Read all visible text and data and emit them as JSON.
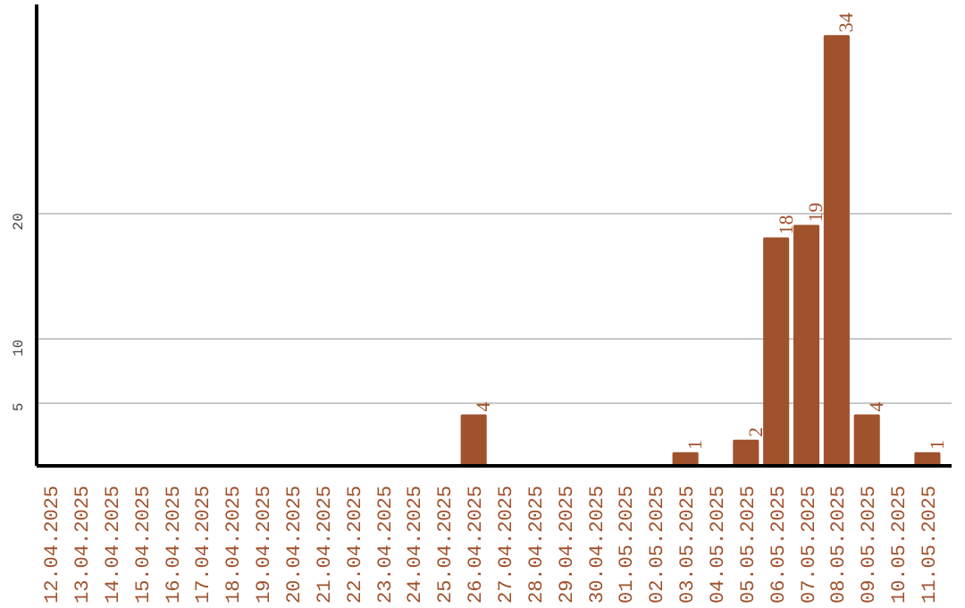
{
  "chart_data": {
    "type": "bar",
    "categories": [
      "12.04.2025",
      "13.04.2025",
      "14.04.2025",
      "15.04.2025",
      "16.04.2025",
      "17.04.2025",
      "18.04.2025",
      "19.04.2025",
      "20.04.2025",
      "21.04.2025",
      "22.04.2025",
      "23.04.2025",
      "24.04.2025",
      "25.04.2025",
      "26.04.2025",
      "27.04.2025",
      "28.04.2025",
      "29.04.2025",
      "30.04.2025",
      "01.05.2025",
      "02.05.2025",
      "03.05.2025",
      "04.05.2025",
      "05.05.2025",
      "06.05.2025",
      "07.05.2025",
      "08.05.2025",
      "09.05.2025",
      "10.05.2025",
      "11.05.2025"
    ],
    "values": [
      0,
      0,
      0,
      0,
      0,
      0,
      0,
      0,
      0,
      0,
      0,
      0,
      0,
      0,
      4,
      0,
      0,
      0,
      0,
      0,
      0,
      1,
      0,
      2,
      18,
      19,
      34,
      4,
      0,
      1
    ],
    "value_labels": [
      null,
      null,
      null,
      null,
      null,
      null,
      null,
      null,
      null,
      null,
      null,
      null,
      null,
      null,
      "4",
      null,
      null,
      null,
      null,
      null,
      null,
      "1",
      null,
      "2",
      "18",
      "19",
      "34",
      "4",
      null,
      "1"
    ],
    "color": "#a0522d",
    "ylim": [
      0,
      36.5
    ],
    "yticks": [
      5,
      10,
      20
    ],
    "grid": "y"
  }
}
